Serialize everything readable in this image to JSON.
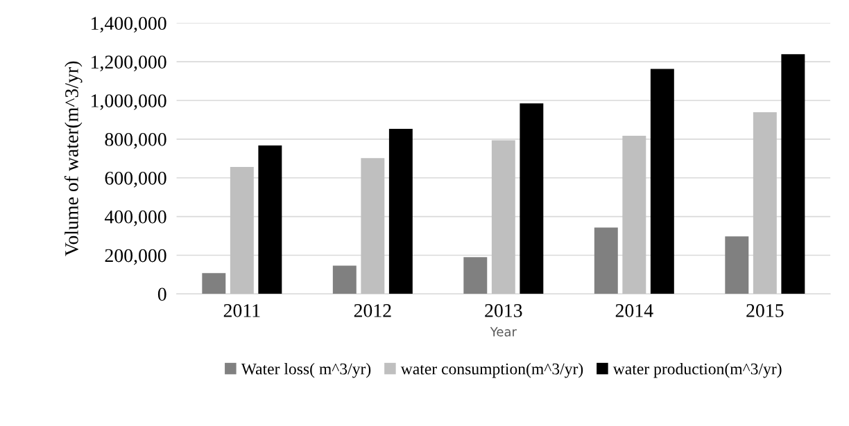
{
  "chart_data": {
    "type": "bar",
    "xlabel": "Year",
    "ylabel": "Volume of water(m^3/yr)",
    "categories": [
      "2011",
      "2012",
      "2013",
      "2014",
      "2015"
    ],
    "series": [
      {
        "name": "Water loss( m^3/yr)",
        "color": "#808080",
        "values": [
          108000,
          146000,
          190000,
          343000,
          297000
        ]
      },
      {
        "name": "water consumption(m^3/yr)",
        "color": "#bfbfbf",
        "values": [
          656000,
          702000,
          794000,
          817000,
          939000
        ]
      },
      {
        "name": "water production(m^3/yr)",
        "color": "#000000",
        "values": [
          767000,
          853000,
          985000,
          1163000,
          1239000
        ]
      }
    ],
    "ylim": [
      0,
      1400000
    ],
    "yticks": [
      0,
      {
        "value": 200000,
        "label": "200,000"
      },
      {
        "value": 400000,
        "label": "400,000"
      },
      {
        "value": 600000,
        "label": "600,000"
      },
      {
        "value": 800000,
        "label": "800,000"
      },
      {
        "value": 1000000,
        "label": "1,000,000"
      },
      {
        "value": 1200000,
        "label": "1,200,000"
      },
      {
        "value": 1400000,
        "label": "1,400,000"
      }
    ],
    "grid": "y",
    "legend": "bottom"
  }
}
